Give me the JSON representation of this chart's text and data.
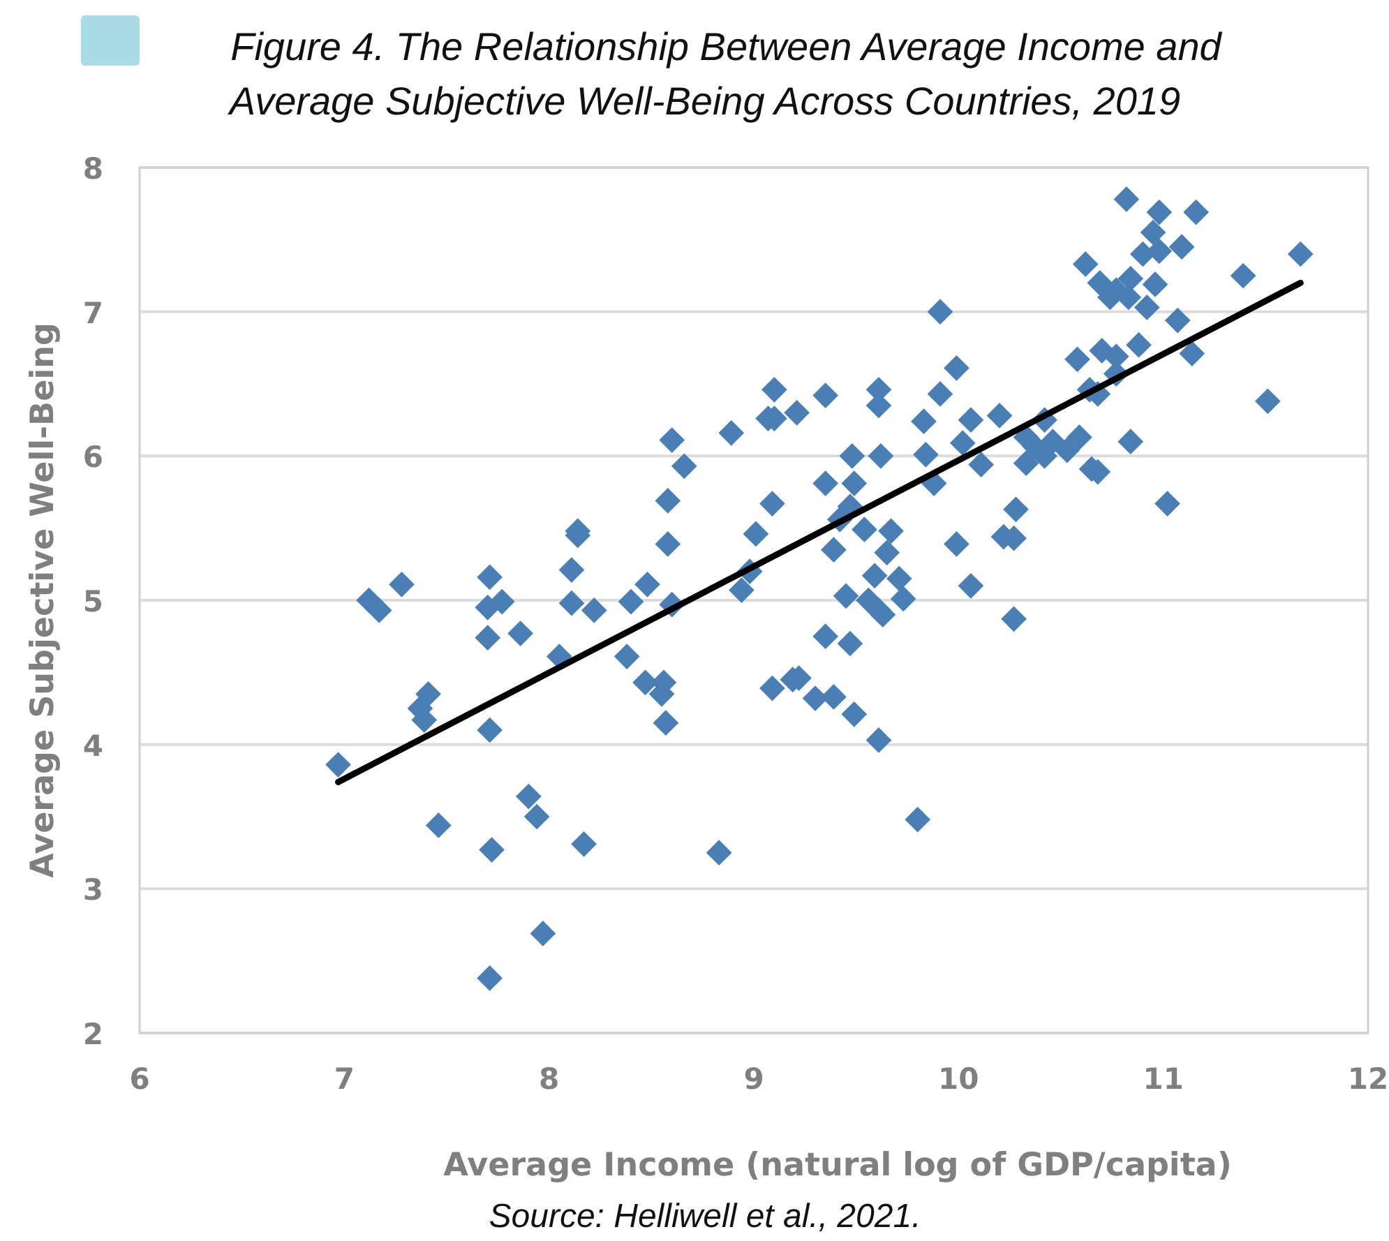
{
  "chart_data": {
    "type": "scatter",
    "title": "Figure 4. The Relationship Between Average Income and\nAverage Subjective Well-Being Across Countries, 2019",
    "xlabel": "Average Income (natural log of GDP/capita)",
    "ylabel": "Average Subjective Well-Being",
    "annotations": [
      "Source: Helliwell et al., 2021."
    ],
    "xlim": [
      6,
      12
    ],
    "xticks": [
      6,
      7,
      8,
      9,
      10,
      11,
      12
    ],
    "ylim": [
      2,
      8
    ],
    "yticks": [
      2,
      3,
      4,
      5,
      6,
      7,
      8
    ],
    "grid": "y",
    "marker": "diamond",
    "series": [
      {
        "color": "#4a7fb5",
        "x": [
          6.97,
          7.12,
          7.17,
          7.28,
          7.41,
          7.37,
          7.39,
          7.46,
          7.71,
          7.7,
          7.77,
          7.7,
          7.86,
          7.71,
          7.72,
          7.9,
          7.94,
          7.97,
          7.71,
          8.05,
          8.11,
          8.11,
          8.14,
          8.14,
          8.22,
          8.17,
          8.4,
          8.48,
          8.38,
          8.47,
          8.56,
          8.55,
          8.57,
          8.58,
          8.58,
          8.6,
          8.83,
          9.01,
          8.94,
          8.98,
          8.6,
          8.66,
          9.91,
          9.99,
          9.1,
          9.07,
          9.1,
          9.21,
          9.35,
          9.61,
          9.61,
          9.91,
          8.89,
          9.83,
          10.06,
          10.2,
          10.02,
          10.11,
          9.84,
          9.88,
          9.48,
          9.62,
          9.35,
          9.49,
          9.09,
          9.47,
          9.42,
          9.54,
          9.67,
          9.39,
          9.65,
          10.28,
          9.99,
          10.22,
          10.27,
          9.59,
          9.71,
          10.06,
          9.45,
          9.56,
          9.63,
          9.73,
          9.61,
          9.35,
          9.47,
          10.27,
          9.09,
          9.19,
          9.22,
          9.3,
          9.39,
          9.49,
          9.61,
          9.8,
          10.82,
          10.98,
          11.16,
          10.95,
          10.9,
          10.98,
          11.09,
          10.62,
          11.67,
          11.39,
          10.69,
          10.84,
          10.77,
          10.96,
          10.74,
          10.83,
          10.92,
          11.07,
          10.58,
          10.7,
          10.77,
          10.88,
          11.14,
          10.77,
          10.64,
          10.68,
          11.51,
          10.42,
          10.33,
          10.37,
          10.46,
          10.53,
          10.59,
          10.42,
          10.33,
          10.84,
          10.65,
          10.68,
          11.02
        ],
        "values": [
          3.86,
          5.0,
          4.93,
          5.11,
          4.35,
          4.25,
          4.17,
          3.44,
          5.16,
          4.95,
          4.99,
          4.74,
          4.77,
          4.1,
          3.27,
          3.64,
          3.5,
          2.69,
          2.38,
          4.61,
          5.21,
          4.98,
          5.48,
          5.45,
          4.93,
          3.31,
          4.99,
          5.11,
          4.61,
          4.43,
          4.43,
          4.35,
          4.15,
          5.69,
          5.39,
          4.97,
          3.25,
          5.46,
          5.07,
          5.2,
          6.11,
          5.93,
          7.0,
          6.61,
          6.46,
          6.26,
          6.26,
          6.3,
          6.42,
          6.46,
          6.35,
          6.43,
          6.16,
          6.24,
          6.25,
          6.28,
          6.09,
          5.94,
          6.01,
          5.81,
          6.0,
          6.0,
          5.81,
          5.81,
          5.67,
          5.65,
          5.56,
          5.49,
          5.48,
          5.35,
          5.33,
          5.63,
          5.39,
          5.44,
          5.43,
          5.17,
          5.15,
          5.1,
          5.03,
          5.0,
          4.9,
          5.01,
          4.93,
          4.75,
          4.7,
          4.87,
          4.39,
          4.45,
          4.46,
          4.32,
          4.33,
          4.21,
          4.03,
          3.48,
          7.78,
          7.69,
          7.69,
          7.55,
          7.4,
          7.42,
          7.45,
          7.33,
          7.4,
          7.25,
          7.2,
          7.23,
          7.15,
          7.19,
          7.1,
          7.1,
          7.03,
          6.94,
          6.67,
          6.73,
          6.69,
          6.77,
          6.71,
          6.57,
          6.46,
          6.43,
          6.38,
          6.25,
          6.13,
          6.07,
          6.1,
          6.04,
          6.13,
          6.0,
          5.95,
          6.1,
          5.91,
          5.89,
          5.67
        ]
      },
      {
        "type": "line",
        "color": "#000000",
        "marker": "none",
        "x": [
          6.97,
          11.67
        ],
        "values": [
          3.74,
          7.2
        ]
      }
    ]
  }
}
